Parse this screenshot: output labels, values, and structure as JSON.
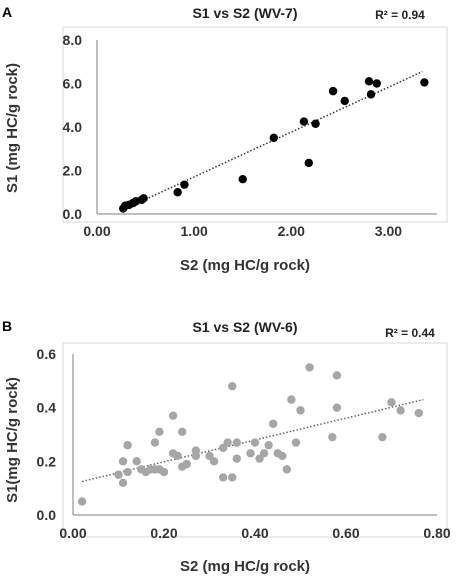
{
  "chart_data": [
    {
      "panel": "A",
      "type": "scatter",
      "title": "S1 vs S2 (WV-7)",
      "annotation": "R² = 0.94",
      "xlabel": "S2 (mg HC/g rock)",
      "ylabel": "S1 (mg HC/g rock)",
      "xlim": [
        0,
        3.5
      ],
      "ylim": [
        0,
        8
      ],
      "xticks": [
        "0.00",
        "1.00",
        "2.00",
        "3.00"
      ],
      "yticks": [
        "0.0",
        "2.0",
        "4.0",
        "6.0",
        "8.0"
      ],
      "xtick_values": [
        0,
        1,
        2,
        3
      ],
      "ytick_values": [
        0,
        2,
        4,
        6,
        8
      ],
      "marker_color": "#000000",
      "trendline": {
        "style": "dotted",
        "color": "#333333",
        "x": [
          0.27,
          3.35
        ],
        "y": [
          0.2,
          6.55
        ]
      },
      "x": [
        0.27,
        0.29,
        0.33,
        0.37,
        0.4,
        0.46,
        0.48,
        0.83,
        0.9,
        1.5,
        1.82,
        2.13,
        2.18,
        2.25,
        2.43,
        2.55,
        2.8,
        2.82,
        2.88,
        3.37
      ],
      "y": [
        0.25,
        0.38,
        0.42,
        0.5,
        0.58,
        0.65,
        0.72,
        1.0,
        1.35,
        1.6,
        3.5,
        4.25,
        2.35,
        4.15,
        5.65,
        5.2,
        6.1,
        5.5,
        6.0,
        6.05
      ]
    },
    {
      "panel": "B",
      "type": "scatter",
      "title": "S1 vs S2 (WV-6)",
      "annotation": "R² = 0.44",
      "xlabel": "S2 (mg HC/g rock)",
      "ylabel": "S1(mg HC/g rock)",
      "xlim": [
        0,
        0.8
      ],
      "ylim": [
        0,
        0.6
      ],
      "xticks": [
        "0.00",
        "0.20",
        "0.40",
        "0.60",
        "0.80"
      ],
      "yticks": [
        "0.0",
        "0.2",
        "0.4",
        "0.6"
      ],
      "xtick_values": [
        0,
        0.2,
        0.4,
        0.6,
        0.8
      ],
      "ytick_values": [
        0,
        0.2,
        0.4,
        0.6
      ],
      "marker_color": "#a6a6a6",
      "trendline": {
        "style": "dotted",
        "color": "#666666",
        "x": [
          0.02,
          0.77
        ],
        "y": [
          0.125,
          0.43
        ]
      },
      "x": [
        0.02,
        0.1,
        0.11,
        0.11,
        0.12,
        0.12,
        0.14,
        0.15,
        0.16,
        0.17,
        0.18,
        0.18,
        0.19,
        0.2,
        0.22,
        0.23,
        0.24,
        0.24,
        0.25,
        0.27,
        0.3,
        0.31,
        0.33,
        0.33,
        0.34,
        0.35,
        0.35,
        0.36,
        0.39,
        0.4,
        0.42,
        0.43,
        0.44,
        0.45,
        0.46,
        0.47,
        0.48,
        0.49,
        0.5,
        0.52,
        0.57,
        0.58,
        0.58,
        0.68,
        0.7,
        0.72,
        0.76,
        0.36,
        0.27,
        0.41,
        0.22,
        0.19
      ],
      "y": [
        0.05,
        0.15,
        0.12,
        0.2,
        0.26,
        0.16,
        0.2,
        0.17,
        0.16,
        0.17,
        0.27,
        0.17,
        0.17,
        0.16,
        0.37,
        0.22,
        0.18,
        0.31,
        0.19,
        0.22,
        0.22,
        0.2,
        0.25,
        0.14,
        0.27,
        0.14,
        0.48,
        0.27,
        0.23,
        0.27,
        0.23,
        0.26,
        0.34,
        0.23,
        0.22,
        0.17,
        0.43,
        0.27,
        0.39,
        0.55,
        0.29,
        0.52,
        0.4,
        0.29,
        0.42,
        0.39,
        0.38,
        0.21,
        0.24,
        0.21,
        0.23,
        0.31
      ]
    }
  ]
}
